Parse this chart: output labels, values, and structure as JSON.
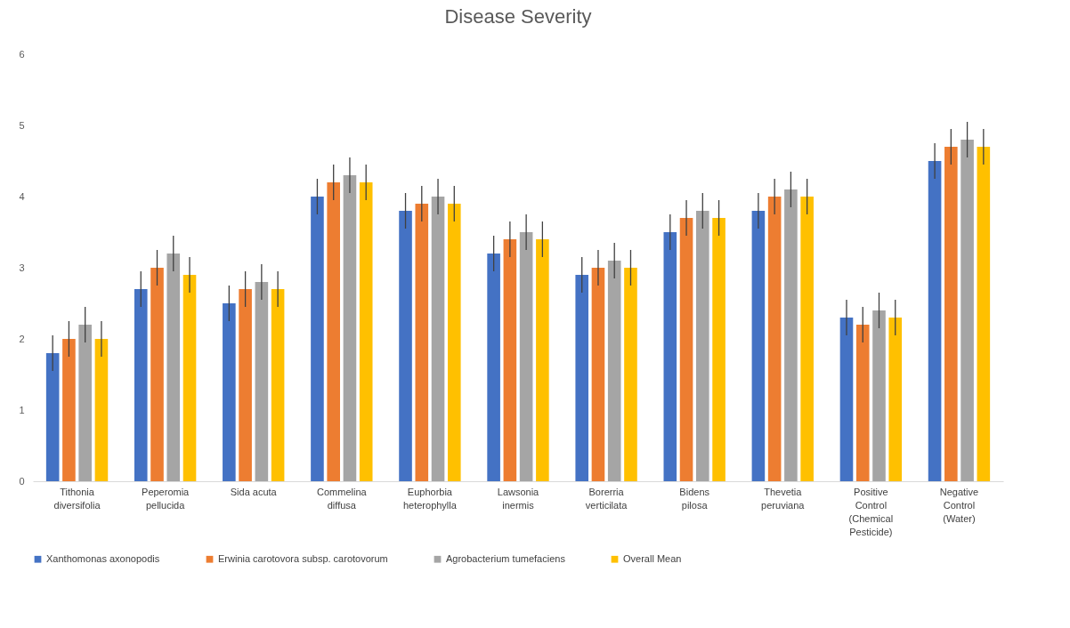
{
  "chart_data": {
    "type": "bar",
    "title": "Disease Severity",
    "categories": [
      "Tithonia diversifolia",
      "Peperomia pellucida",
      "Sida acuta",
      "Commelina diffusa",
      "Euphorbia heterophylla",
      "Lawsonia inermis",
      "Borerria verticilata",
      "Bidens pilosa",
      "Thevetia peruviana",
      "Positive Control (Chemical Pesticide)",
      "Negative Control (Water)"
    ],
    "series": [
      {
        "name": "Xanthomonas axonopodis",
        "color": "#4472c4",
        "values": [
          1.8,
          2.7,
          2.5,
          4.0,
          3.8,
          3.2,
          2.9,
          3.5,
          3.8,
          2.3,
          4.5
        ],
        "errors": [
          0.25,
          0.25,
          0.25,
          0.25,
          0.25,
          0.25,
          0.25,
          0.25,
          0.25,
          0.25,
          0.25
        ]
      },
      {
        "name": "Erwinia carotovora subsp. carotovorum",
        "color": "#ed7d31",
        "values": [
          2.0,
          3.0,
          2.7,
          4.2,
          3.9,
          3.4,
          3.0,
          3.7,
          4.0,
          2.2,
          4.7
        ],
        "errors": [
          0.25,
          0.25,
          0.25,
          0.25,
          0.25,
          0.25,
          0.25,
          0.25,
          0.25,
          0.25,
          0.25
        ]
      },
      {
        "name": "Agrobacterium tumefaciens",
        "color": "#a5a5a5",
        "values": [
          2.2,
          3.2,
          2.8,
          4.3,
          4.0,
          3.5,
          3.1,
          3.8,
          4.1,
          2.4,
          4.8
        ],
        "errors": [
          0.25,
          0.25,
          0.25,
          0.25,
          0.25,
          0.25,
          0.25,
          0.25,
          0.25,
          0.25,
          0.25
        ]
      },
      {
        "name": "Overall Mean",
        "color": "#ffc000",
        "values": [
          2.0,
          2.9,
          2.7,
          4.2,
          3.9,
          3.4,
          3.0,
          3.7,
          4.0,
          2.3,
          4.7
        ],
        "errors": [
          0.25,
          0.25,
          0.25,
          0.25,
          0.25,
          0.25,
          0.25,
          0.25,
          0.25,
          0.25,
          0.25
        ]
      }
    ],
    "ylim": [
      0,
      6
    ],
    "yticks": [
      0,
      1,
      2,
      3,
      4,
      5,
      6
    ],
    "grid": false,
    "legend": "bottom"
  }
}
